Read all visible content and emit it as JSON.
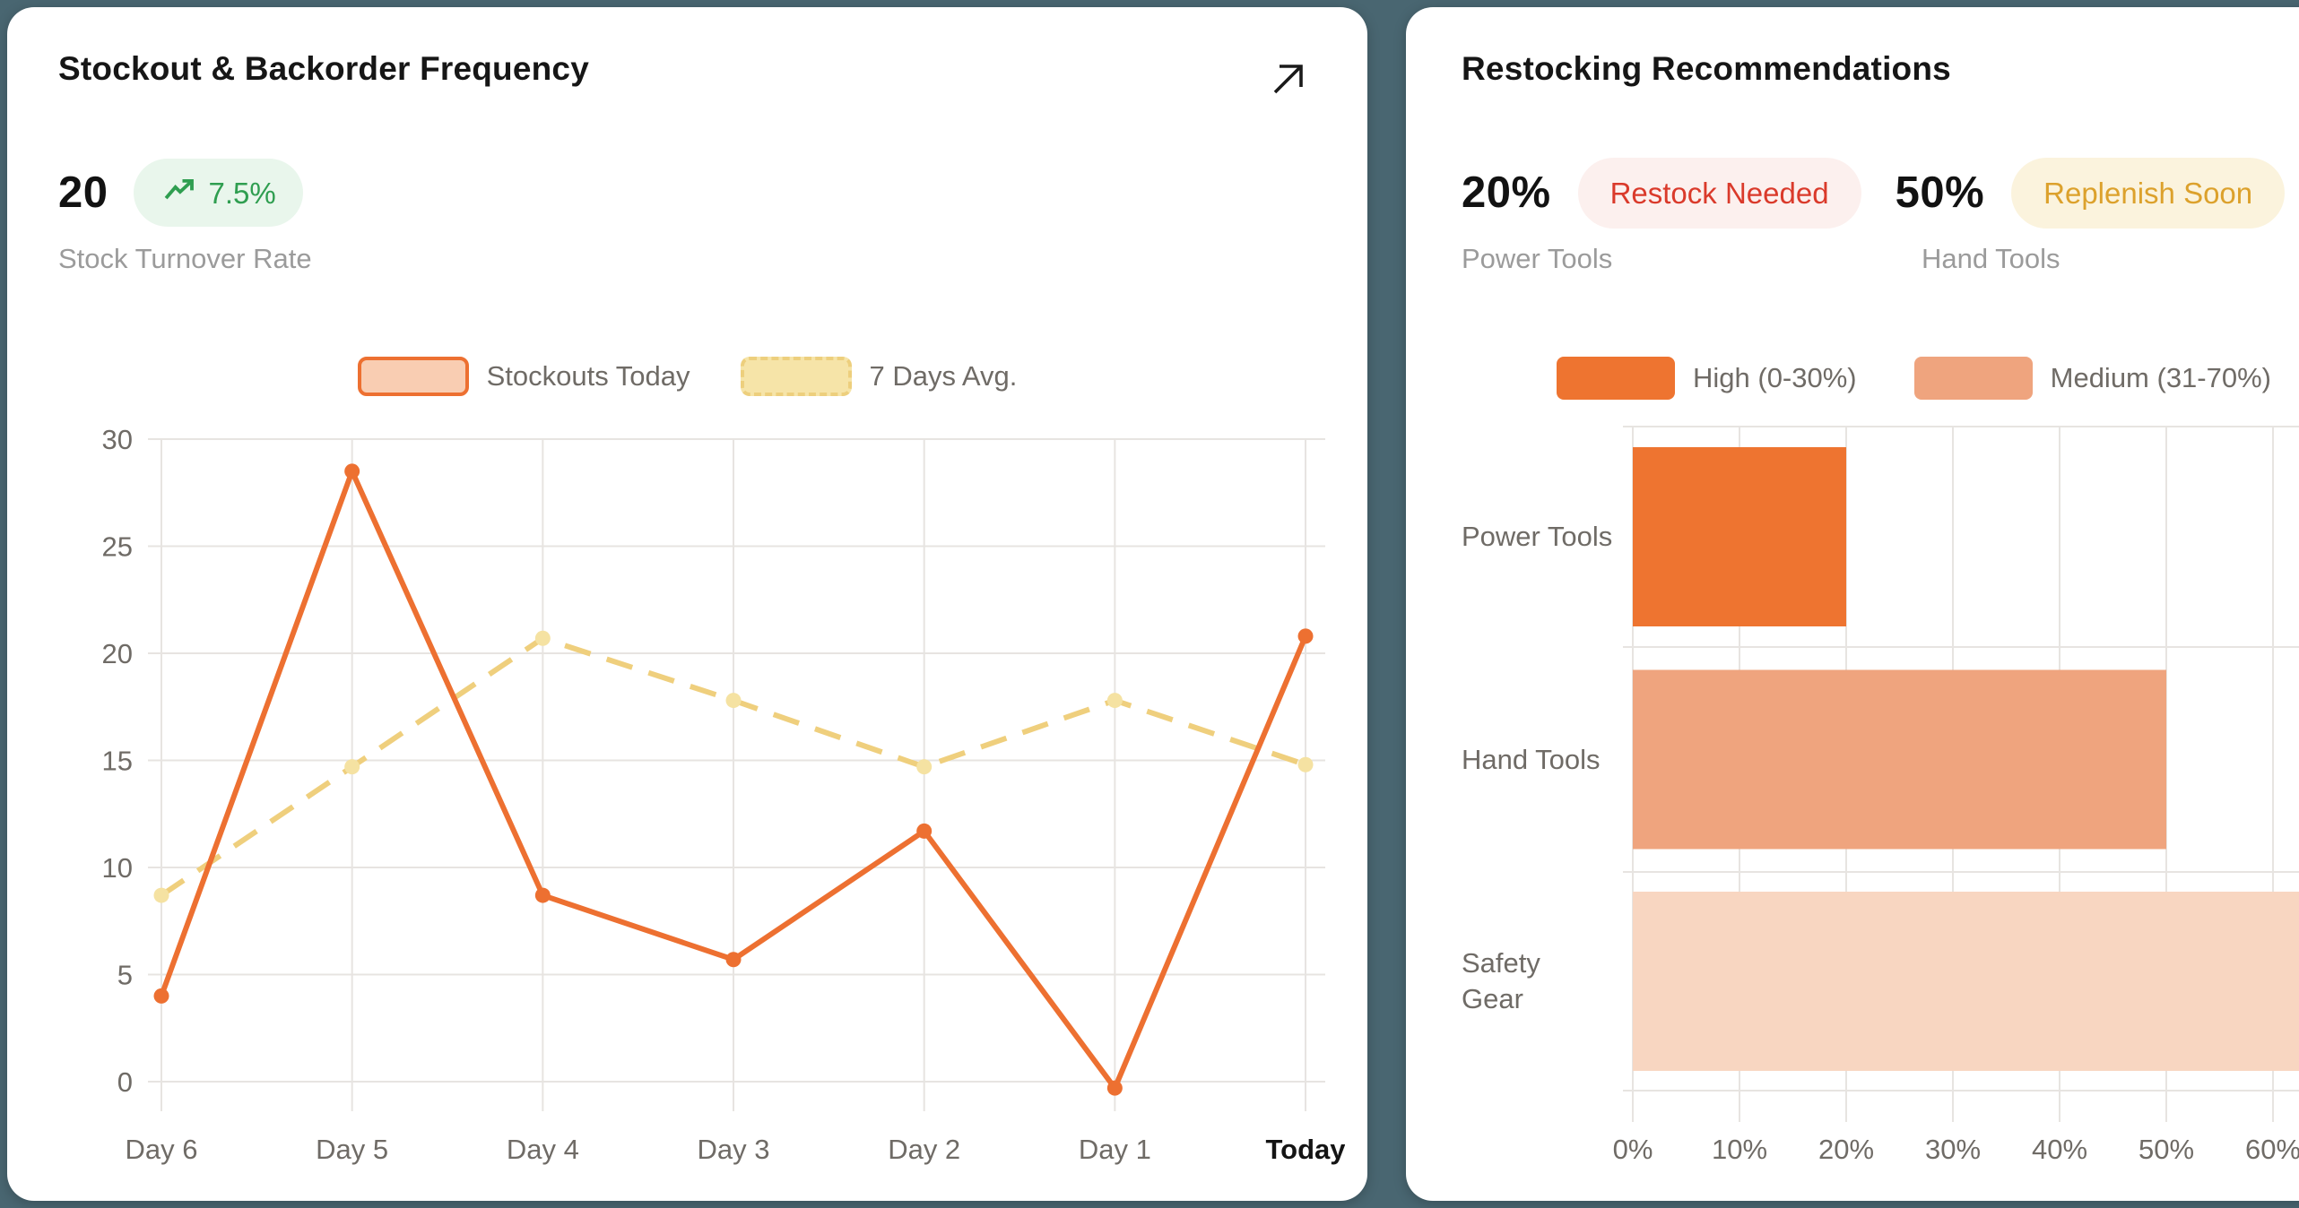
{
  "page": {
    "background_color": "#496671"
  },
  "left_card": {
    "title": "Stockout & Backorder Frequency",
    "expand_icon": "arrow-up-right",
    "stat": {
      "value": "20",
      "delta": "7.5%",
      "delta_icon": "trending-up",
      "delta_text_color": "#2F9E50",
      "delta_bg_color": "#E9F6EC",
      "label": "Stock Turnover Rate"
    },
    "legend": [
      {
        "label": "Stockouts Today",
        "swatch_fill": "#F9CDB2",
        "swatch_border": "#ED7031",
        "border_style": "solid"
      },
      {
        "label": "7 Days Avg.",
        "swatch_fill": "#F6E4A8",
        "swatch_border": "#EDCF7D",
        "border_style": "dashed"
      }
    ],
    "chart_data": {
      "type": "line",
      "categories": [
        "Day 6",
        "Day 5",
        "Day 4",
        "Day 3",
        "Day 2",
        "Day 1",
        "Today"
      ],
      "emphasized_category": "Today",
      "series": [
        {
          "name": "Stockouts Today",
          "color": "#ED7031",
          "point_color": "#ED7031",
          "line_style": "solid",
          "values": [
            4,
            28.5,
            8.7,
            5.7,
            11.7,
            -0.3,
            20.8
          ]
        },
        {
          "name": "7 Days Avg.",
          "color": "#EFCF7D",
          "point_color": "#F5E2A2",
          "line_style": "dashed",
          "values": [
            8.7,
            14.7,
            20.7,
            17.8,
            14.7,
            17.8,
            14.8
          ]
        }
      ],
      "ylim": [
        0,
        30
      ],
      "yticks": [
        0,
        5,
        10,
        15,
        20,
        25,
        30
      ],
      "grid": true,
      "legend_position": "top"
    }
  },
  "right_card": {
    "title": "Restocking Recommendations",
    "stats": [
      {
        "value": "20%",
        "badge": "Restock Needed",
        "badge_text_color": "#DA3A2B",
        "badge_bg_color": "#FCF0EE",
        "label": "Power Tools"
      },
      {
        "value": "50%",
        "badge": "Replenish Soon",
        "badge_text_color": "#DCA12C",
        "badge_bg_color": "#FBF3DD",
        "label": "Hand Tools"
      }
    ],
    "legend": [
      {
        "label": "High (0-30%)",
        "swatch_fill": "#EE7430"
      },
      {
        "label": "Medium (31-70%)",
        "swatch_fill": "#EFA47E"
      }
    ],
    "chart_data": {
      "type": "bar",
      "orientation": "horizontal",
      "categories": [
        "Power Tools",
        "Hand Tools",
        "Safety Gear"
      ],
      "category_display_lines": [
        [
          "Power Tools"
        ],
        [
          "Hand Tools"
        ],
        [
          "Safety",
          "Gear"
        ]
      ],
      "values": [
        20,
        50,
        62
      ],
      "clipped": [
        false,
        false,
        true
      ],
      "bar_colors": [
        "#EE7430",
        "#EFA47E",
        "#F8D6C1"
      ],
      "xticks": [
        "0%",
        "10%",
        "20%",
        "30%",
        "40%",
        "50%",
        "60%"
      ],
      "xlim": [
        0,
        62
      ],
      "grid": true
    }
  }
}
